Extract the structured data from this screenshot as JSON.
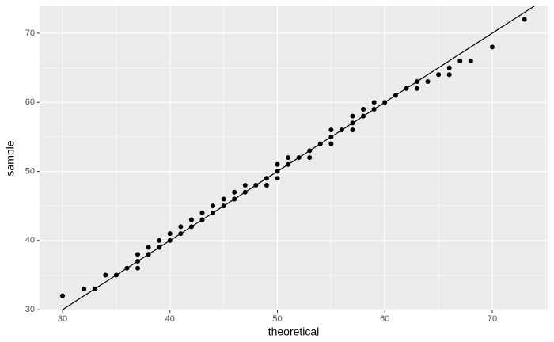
{
  "chart_data": {
    "type": "scatter",
    "x_label": "theoretical",
    "y_label": "sample",
    "x": [
      30,
      32,
      33,
      34,
      35,
      36,
      37,
      37,
      37,
      38,
      38,
      39,
      39,
      40,
      40,
      41,
      41,
      42,
      42,
      43,
      43,
      44,
      44,
      45,
      45,
      46,
      46,
      47,
      47,
      48,
      49,
      49,
      50,
      50,
      50,
      51,
      51,
      52,
      53,
      53,
      54,
      55,
      55,
      55,
      56,
      57,
      57,
      57,
      58,
      58,
      59,
      59,
      60,
      61,
      62,
      63,
      63,
      64,
      65,
      66,
      66,
      67,
      68,
      70,
      73
    ],
    "values": [
      32,
      33,
      33,
      35,
      35,
      36,
      36,
      37,
      38,
      38,
      39,
      39,
      40,
      40,
      41,
      41,
      42,
      42,
      43,
      43,
      44,
      44,
      45,
      45,
      46,
      46,
      47,
      47,
      48,
      48,
      48,
      49,
      49,
      50,
      51,
      51,
      52,
      52,
      52,
      53,
      54,
      54,
      55,
      56,
      56,
      56,
      57,
      58,
      58,
      59,
      59,
      60,
      60,
      61,
      62,
      62,
      63,
      63,
      64,
      64,
      65,
      66,
      66,
      68,
      72
    ],
    "color": "#000000",
    "reference_line": {
      "x": [
        30,
        75
      ],
      "y": [
        30,
        75
      ],
      "color": "#000000"
    },
    "xlim": [
      27.86,
      75.16
    ],
    "ylim": [
      29.9,
      74.0
    ],
    "xticks": [
      30,
      40,
      50,
      60,
      70
    ],
    "yticks": [
      30,
      40,
      50,
      60,
      70
    ],
    "grid": true,
    "background": "#ebebeb"
  }
}
